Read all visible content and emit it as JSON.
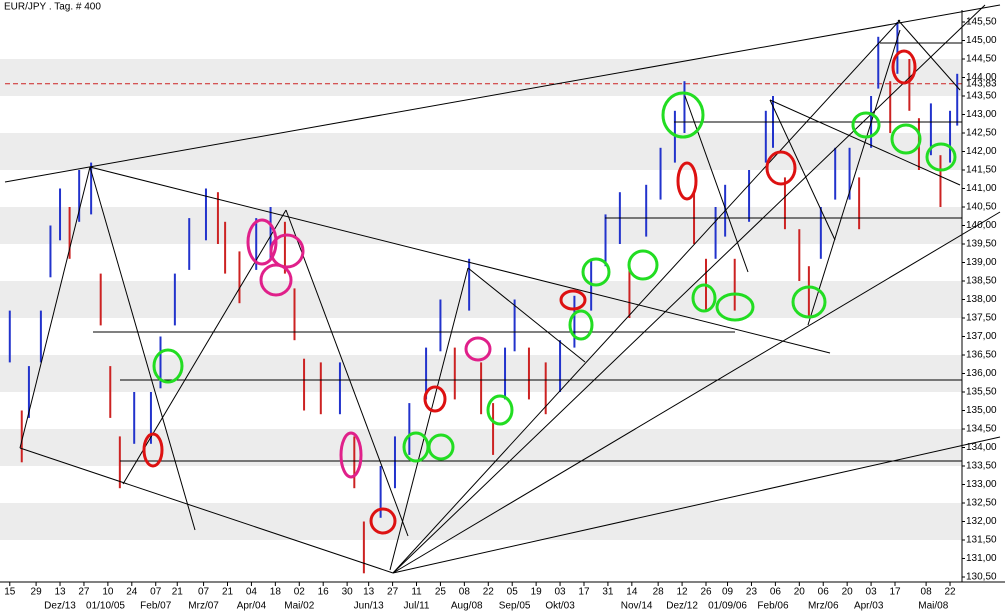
{
  "chart_data": {
    "type": "ohlc",
    "title": "EUR/JPY . Tag. # 400",
    "xlim": [
      0,
      400
    ],
    "ylim": [
      130.5,
      145.5
    ],
    "yticks": [
      {
        "value": 130.5,
        "label": "130,50"
      },
      {
        "value": 131,
        "label": "131,00"
      },
      {
        "value": 131.5,
        "label": "131,50"
      },
      {
        "value": 132,
        "label": "132,00"
      },
      {
        "value": 132.5,
        "label": "132,50"
      },
      {
        "value": 133,
        "label": "133,00"
      },
      {
        "value": 133.5,
        "label": "133,50"
      },
      {
        "value": 134,
        "label": "134,00"
      },
      {
        "value": 134.5,
        "label": "134,50"
      },
      {
        "value": 135,
        "label": "135,00"
      },
      {
        "value": 135.5,
        "label": "135,50"
      },
      {
        "value": 136,
        "label": "136,00"
      },
      {
        "value": 136.5,
        "label": "136,50"
      },
      {
        "value": 137,
        "label": "137,00"
      },
      {
        "value": 137.5,
        "label": "137,50"
      },
      {
        "value": 138,
        "label": "138,00"
      },
      {
        "value": 138.5,
        "label": "138,50"
      },
      {
        "value": 139,
        "label": "139,00"
      },
      {
        "value": 139.5,
        "label": "139,50"
      },
      {
        "value": 140,
        "label": "140,00"
      },
      {
        "value": 140.5,
        "label": "140,50"
      },
      {
        "value": 141,
        "label": "141,00"
      },
      {
        "value": 141.5,
        "label": "141,50"
      },
      {
        "value": 142,
        "label": "142,00"
      },
      {
        "value": 142.5,
        "label": "142,50"
      },
      {
        "value": 143,
        "label": "143,00"
      },
      {
        "value": 143.5,
        "label": "143,50"
      },
      {
        "value": 144,
        "label": "144,00"
      },
      {
        "value": 144.5,
        "label": "144,50"
      },
      {
        "value": 145,
        "label": "145,00"
      },
      {
        "value": 145.5,
        "label": "145,50"
      }
    ],
    "xticks": [
      {
        "value": 2,
        "label": "15"
      },
      {
        "value": 13,
        "label": "29"
      },
      {
        "value": 23,
        "label": "13"
      },
      {
        "value": 33,
        "label": "27"
      },
      {
        "value": 43,
        "label": "10"
      },
      {
        "value": 53,
        "label": "24"
      },
      {
        "value": 63,
        "label": "07"
      },
      {
        "value": 72,
        "label": "21"
      },
      {
        "value": 83,
        "label": "07"
      },
      {
        "value": 93,
        "label": "21"
      },
      {
        "value": 103,
        "label": "04"
      },
      {
        "value": 113,
        "label": "18"
      },
      {
        "value": 123,
        "label": "02"
      },
      {
        "value": 133,
        "label": "16"
      },
      {
        "value": 143,
        "label": "30"
      },
      {
        "value": 152,
        "label": "13"
      },
      {
        "value": 162,
        "label": "27"
      },
      {
        "value": 172,
        "label": "11"
      },
      {
        "value": 182,
        "label": "25"
      },
      {
        "value": 192,
        "label": "08"
      },
      {
        "value": 202,
        "label": "22"
      },
      {
        "value": 212,
        "label": "05"
      },
      {
        "value": 222,
        "label": "19"
      },
      {
        "value": 232,
        "label": "03"
      },
      {
        "value": 242,
        "label": "17"
      },
      {
        "value": 252,
        "label": "31"
      },
      {
        "value": 262,
        "label": "14"
      },
      {
        "value": 273,
        "label": "28"
      },
      {
        "value": 283,
        "label": "12"
      },
      {
        "value": 293,
        "label": "26"
      },
      {
        "value": 302,
        "label": "09"
      },
      {
        "value": 312,
        "label": "23"
      },
      {
        "value": 322,
        "label": "06"
      },
      {
        "value": 332,
        "label": "20"
      },
      {
        "value": 342,
        "label": "06"
      },
      {
        "value": 352,
        "label": "20"
      },
      {
        "value": 362,
        "label": "03"
      },
      {
        "value": 372,
        "label": "17"
      },
      {
        "value": 385,
        "label": "08"
      },
      {
        "value": 395,
        "label": "22"
      }
    ],
    "xticks_months": [
      {
        "value": 23,
        "label": "Dez/13"
      },
      {
        "value": 42,
        "label": "01/10/05"
      },
      {
        "value": 63,
        "label": "Feb/07"
      },
      {
        "value": 83,
        "label": "Mrz/07"
      },
      {
        "value": 103,
        "label": "Apr/04"
      },
      {
        "value": 123,
        "label": "Mai/02"
      },
      {
        "value": 152,
        "label": "Jun/13"
      },
      {
        "value": 172,
        "label": "Jul/11"
      },
      {
        "value": 193,
        "label": "Aug/08"
      },
      {
        "value": 213,
        "label": "Sep/05"
      },
      {
        "value": 232,
        "label": "Okt/03"
      },
      {
        "value": 264,
        "label": "Nov/14"
      },
      {
        "value": 283,
        "label": "Dez/12"
      },
      {
        "value": 302,
        "label": "01/09/06"
      },
      {
        "value": 321,
        "label": "Feb/06"
      },
      {
        "value": 342,
        "label": "Mrz/06"
      },
      {
        "value": 361,
        "label": "Apr/03"
      },
      {
        "value": 388,
        "label": "Mai/08"
      }
    ],
    "last_price": {
      "value": 143.83,
      "label": "143,83",
      "color": "#cc2222"
    },
    "up_color": "#2233cc",
    "down_color": "#cc2222",
    "bars": {
      "x": [
        2,
        7,
        10,
        15,
        19,
        23,
        27,
        31,
        36,
        40,
        44,
        48,
        54,
        61,
        65,
        71,
        77,
        84,
        89,
        92,
        98,
        105,
        111,
        117,
        121,
        125,
        132,
        140,
        146,
        150,
        157,
        163,
        169,
        176,
        182,
        188,
        194,
        199,
        204,
        209,
        213,
        219,
        226,
        232,
        238,
        245,
        251,
        257,
        261,
        268,
        274,
        280,
        284,
        288,
        293,
        297,
        301,
        305,
        311,
        318,
        321,
        326,
        332,
        336,
        341,
        347,
        353,
        357,
        362,
        365,
        370,
        373,
        378,
        382,
        387,
        391,
        395,
        398
      ],
      "high": [
        137.7,
        135.0,
        136.2,
        137.7,
        140.0,
        141.0,
        140.5,
        141.5,
        141.7,
        138.7,
        136.2,
        134.3,
        135.5,
        135.5,
        137.0,
        138.7,
        140.2,
        141.0,
        140.9,
        140.1,
        139.3,
        140.2,
        140.5,
        140.1,
        138.3,
        136.4,
        136.3,
        136.3,
        134.3,
        132.0,
        133.5,
        134.3,
        135.2,
        136.7,
        138.0,
        136.7,
        139.1,
        136.3,
        135.2,
        136.7,
        138.0,
        136.7,
        136.3,
        136.9,
        138.1,
        139.1,
        140.3,
        140.9,
        138.9,
        141.1,
        142.1,
        143.1,
        143.9,
        140.9,
        139.1,
        140.5,
        141.1,
        139.1,
        141.5,
        143.1,
        143.5,
        141.3,
        139.9,
        138.9,
        140.5,
        142.1,
        142.1,
        141.3,
        143.5,
        145.1,
        143.9,
        145.5,
        144.5,
        142.9,
        143.3,
        141.9,
        143.1,
        144.1
      ],
      "low": [
        136.3,
        133.6,
        134.8,
        136.3,
        138.6,
        139.6,
        139.1,
        140.1,
        140.3,
        137.3,
        134.8,
        132.9,
        134.1,
        134.1,
        135.6,
        137.3,
        138.8,
        139.6,
        139.5,
        138.7,
        137.9,
        138.8,
        139.1,
        138.7,
        136.9,
        135.0,
        134.9,
        134.9,
        132.9,
        130.6,
        132.1,
        132.9,
        133.8,
        135.3,
        136.6,
        135.3,
        137.7,
        134.9,
        133.8,
        135.3,
        136.6,
        135.3,
        134.9,
        135.5,
        136.7,
        137.7,
        138.9,
        139.5,
        137.5,
        139.7,
        140.7,
        141.7,
        142.5,
        139.5,
        137.7,
        139.1,
        139.7,
        137.7,
        140.1,
        141.7,
        142.1,
        139.9,
        138.5,
        137.5,
        139.1,
        140.7,
        140.7,
        139.9,
        142.1,
        143.7,
        142.5,
        144.1,
        143.1,
        141.5,
        141.9,
        140.5,
        141.7,
        142.7
      ]
    }
  }
}
